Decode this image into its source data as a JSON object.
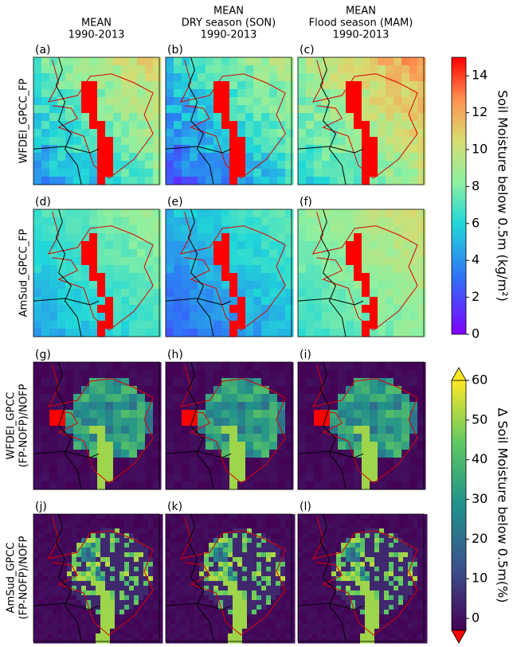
{
  "columns": [
    [
      "MEAN",
      "1990-2013"
    ],
    [
      "MEAN",
      "DRY season (SON)",
      "1990-2013"
    ],
    [
      "MEAN",
      "Flood season (MAM)",
      "1990-2013"
    ]
  ],
  "rows": [
    [
      "WFDEI_GPCC_FP"
    ],
    [
      "AmSud_GPCC_FP"
    ],
    [
      "WFDEI_GPCC",
      "(FP-NOFP)/NOFP"
    ],
    [
      "AmSud_GPCC",
      "(FP-NOFP)/NOFP"
    ]
  ],
  "panels": [
    "(a)",
    "(b)",
    "(c)",
    "(d)",
    "(e)",
    "(f)",
    "(g)",
    "(h)",
    "(i)",
    "(j)",
    "(k)",
    "(l)"
  ],
  "colorbars": [
    {
      "label": "Soil Moisture below 0.5m (kg/m²)",
      "ylim": [
        0,
        15
      ],
      "yticks": [
        0,
        2,
        4,
        6,
        8,
        10,
        12,
        14
      ],
      "colormap": "rainbow"
    },
    {
      "label": "Δ Soil Moisture below 0.5m(%)",
      "ylim": [
        -3,
        60
      ],
      "yticks": [
        0,
        10,
        20,
        30,
        40,
        50,
        60
      ],
      "colormap": "viridis",
      "extend": "both"
    }
  ]
}
